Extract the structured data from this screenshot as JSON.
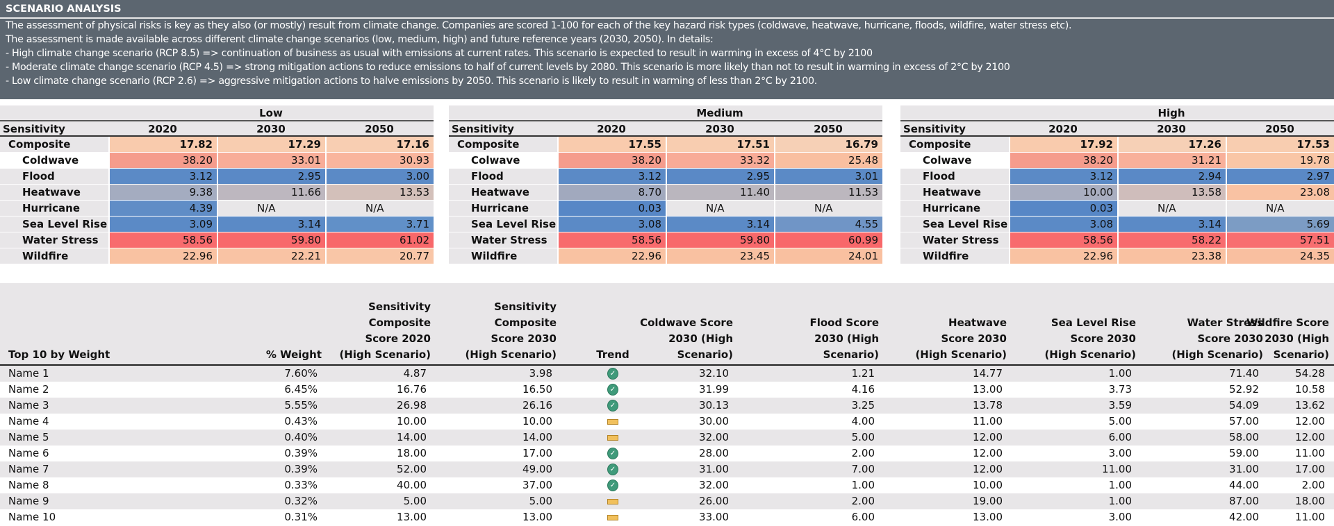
{
  "header": {
    "title": "SCENARIO ANALYSIS",
    "lines": [
      "The assessment of physical risks is key as they also (or mostly) result from climate change. Companies are scored 1-100 for each of the key hazard risk types (coldwave, heatwave, hurricane, floods, wildfire, water stress etc).",
      "The assessment is made available across different climate change scenarios (low, medium, high) and future reference years (2030, 2050). In details:",
      "- High climate change scenario (RCP 8.5) => continuation of business as usual with emissions at current rates. This scenario is expected to result in warming in excess of 4°C by 2100",
      "- Moderate climate change scenario (RCP 4.5) => strong mitigation actions to reduce emissions to half of current levels by 2080. This scenario is more likely than not to result in warming in excess of 2°C by 2100",
      "- Low climate change scenario (RCP 2.6) => aggressive mitigation actions to halve emissions by 2050. This scenario is likely to result in warming of less than 2°C by 2100."
    ]
  },
  "scenarios": [
    {
      "name": "Low",
      "header": [
        "Sensitivity",
        "2020",
        "2030",
        "2050"
      ],
      "rows": [
        {
          "label": "Composite",
          "values": [
            "17.82",
            "17.29",
            "17.16"
          ],
          "colors": [
            "#f9cbad",
            "#f8cdb0",
            "#f8ceb2"
          ]
        },
        {
          "label": "Coldwave",
          "values": [
            "38.20",
            "33.01",
            "30.93"
          ],
          "colors": [
            "#f59c8c",
            "#f8ad98",
            "#f9b59d"
          ]
        },
        {
          "label": "Flood",
          "values": [
            "3.12",
            "2.95",
            "3.00"
          ],
          "colors": [
            "#5b8ac6",
            "#5a89c6",
            "#5b8ac6"
          ]
        },
        {
          "label": "Heatwave",
          "values": [
            "9.38",
            "11.66",
            "13.53"
          ],
          "colors": [
            "#a4acc0",
            "#bdb7bf",
            "#d3c0ba"
          ]
        },
        {
          "label": "Hurricane",
          "values": [
            "4.39",
            "N/A",
            "N/A"
          ],
          "colors": [
            "#608dc6",
            "",
            ""
          ]
        },
        {
          "label": "Sea Level Rise",
          "values": [
            "3.09",
            "3.14",
            "3.71"
          ],
          "colors": [
            "#5b8ac6",
            "#5b8ac6",
            "#6190c8"
          ]
        },
        {
          "label": "Water Stress",
          "values": [
            "58.56",
            "59.80",
            "61.02"
          ],
          "colors": [
            "#f86b6d",
            "#f8696b",
            "#f8686a"
          ]
        },
        {
          "label": "Wildfire",
          "values": [
            "22.96",
            "22.21",
            "20.77"
          ],
          "colors": [
            "#f9c2a2",
            "#f9c3a4",
            "#f9c6a7"
          ]
        }
      ]
    },
    {
      "name": "Medium",
      "header": [
        "Sensitivity",
        "2020",
        "2030",
        "2050"
      ],
      "rows": [
        {
          "label": "Composite",
          "values": [
            "17.55",
            "17.51",
            "16.79"
          ],
          "colors": [
            "#f9cbad",
            "#f8cdb0",
            "#f6d0b6"
          ]
        },
        {
          "label": "Colwave",
          "values": [
            "38.20",
            "33.32",
            "25.48"
          ],
          "colors": [
            "#f59c8c",
            "#f8ab97",
            "#f9bfa0"
          ]
        },
        {
          "label": "Flood",
          "values": [
            "3.12",
            "2.95",
            "3.01"
          ],
          "colors": [
            "#5b8ac6",
            "#5a89c6",
            "#5b8ac6"
          ]
        },
        {
          "label": "Heatwave",
          "values": [
            "8.70",
            "11.40",
            "11.53"
          ],
          "colors": [
            "#a1a9be",
            "#bab6be",
            "#bcb7be"
          ]
        },
        {
          "label": "Hurricane",
          "values": [
            "0.03",
            "N/A",
            "N/A"
          ],
          "colors": [
            "#5787c6",
            "",
            ""
          ]
        },
        {
          "label": "Sea Level Rise",
          "values": [
            "3.08",
            "3.14",
            "4.55"
          ],
          "colors": [
            "#5b8ac6",
            "#5b8ac6",
            "#7095c6"
          ]
        },
        {
          "label": "Water Stress",
          "values": [
            "58.56",
            "59.80",
            "60.99"
          ],
          "colors": [
            "#f86b6d",
            "#f8696b",
            "#f8686a"
          ]
        },
        {
          "label": "Wildfire",
          "values": [
            "22.96",
            "23.45",
            "24.01"
          ],
          "colors": [
            "#f9c2a2",
            "#f9c1a1",
            "#f9c0a0"
          ]
        }
      ]
    },
    {
      "name": "High",
      "header": [
        "Sensitivity",
        "2020",
        "2030",
        "2050"
      ],
      "rows": [
        {
          "label": "Composite",
          "values": [
            "17.92",
            "17.26",
            "17.53"
          ],
          "colors": [
            "#f9cbad",
            "#f6d0b6",
            "#f8cdb0"
          ]
        },
        {
          "label": "Colwave",
          "values": [
            "38.20",
            "31.21",
            "19.78"
          ],
          "colors": [
            "#f59c8c",
            "#f8b09a",
            "#f9c6a6"
          ]
        },
        {
          "label": "Flood",
          "values": [
            "3.12",
            "2.94",
            "2.97"
          ],
          "colors": [
            "#5b8ac6",
            "#5a89c6",
            "#5a89c6"
          ]
        },
        {
          "label": "Heatwave",
          "values": [
            "10.00",
            "13.58",
            "23.08"
          ],
          "colors": [
            "#a9aec0",
            "#cfbdbb",
            "#f9c2a3"
          ]
        },
        {
          "label": "Hurricane",
          "values": [
            "0.03",
            "N/A",
            "N/A"
          ],
          "colors": [
            "#5787c6",
            "",
            ""
          ]
        },
        {
          "label": "Sea Level Rise",
          "values": [
            "3.08",
            "3.14",
            "5.69"
          ],
          "colors": [
            "#5b8ac6",
            "#5b8ac6",
            "#7c9cc4"
          ]
        },
        {
          "label": "Water Stress",
          "values": [
            "58.56",
            "58.22",
            "57.51"
          ],
          "colors": [
            "#f86b6d",
            "#f86c6e",
            "#f86e70"
          ]
        },
        {
          "label": "Wildfire",
          "values": [
            "22.96",
            "23.38",
            "24.35"
          ],
          "colors": [
            "#f9c2a2",
            "#f9c1a1",
            "#f9bfa0"
          ]
        }
      ]
    }
  ],
  "top10": {
    "columns": [
      "Top 10 by Weight",
      "% Weight",
      "Sensitivity\nComposite\nScore 2020\n(High Scenario)",
      "Sensitivity\nComposite\nScore 2030\n(High Scenario)",
      "Trend",
      "Coldwave Score\n2030 (High\nScenario)",
      "Flood Score\n2030 (High\nScenario)",
      "Heatwave\nScore 2030\n(High Scenario)",
      "Sea Level Rise\nScore 2030\n(High Scenario)",
      "Water Stress\nScore 2030\n(High Scenario)",
      "Wildfire Score\n2030 (High\nScenario)"
    ],
    "rows": [
      [
        "Name 1",
        "7.60%",
        "4.87",
        "3.98",
        "check",
        "32.10",
        "1.21",
        "14.77",
        "1.00",
        "71.40",
        "54.28"
      ],
      [
        "Name 2",
        "6.45%",
        "16.76",
        "16.50",
        "check",
        "31.99",
        "4.16",
        "13.00",
        "3.73",
        "52.92",
        "10.58"
      ],
      [
        "Name 3",
        "5.55%",
        "26.98",
        "26.16",
        "check",
        "30.13",
        "3.25",
        "13.78",
        "3.59",
        "54.09",
        "13.62"
      ],
      [
        "Name 4",
        "0.43%",
        "10.00",
        "10.00",
        "flat",
        "30.00",
        "4.00",
        "11.00",
        "5.00",
        "57.00",
        "12.00"
      ],
      [
        "Name 5",
        "0.40%",
        "14.00",
        "14.00",
        "flat",
        "32.00",
        "5.00",
        "12.00",
        "6.00",
        "58.00",
        "12.00"
      ],
      [
        "Name 6",
        "0.39%",
        "18.00",
        "17.00",
        "check",
        "28.00",
        "2.00",
        "12.00",
        "3.00",
        "59.00",
        "11.00"
      ],
      [
        "Name 7",
        "0.39%",
        "52.00",
        "49.00",
        "check",
        "31.00",
        "7.00",
        "12.00",
        "11.00",
        "31.00",
        "17.00"
      ],
      [
        "Name 8",
        "0.33%",
        "40.00",
        "37.00",
        "check",
        "32.00",
        "1.00",
        "10.00",
        "1.00",
        "44.00",
        "2.00"
      ],
      [
        "Name 9",
        "0.32%",
        "5.00",
        "5.00",
        "flat",
        "26.00",
        "2.00",
        "19.00",
        "1.00",
        "87.00",
        "18.00"
      ],
      [
        "Name 10",
        "0.31%",
        "13.00",
        "13.00",
        "flat",
        "33.00",
        "6.00",
        "13.00",
        "3.00",
        "42.00",
        "11.00"
      ]
    ]
  }
}
